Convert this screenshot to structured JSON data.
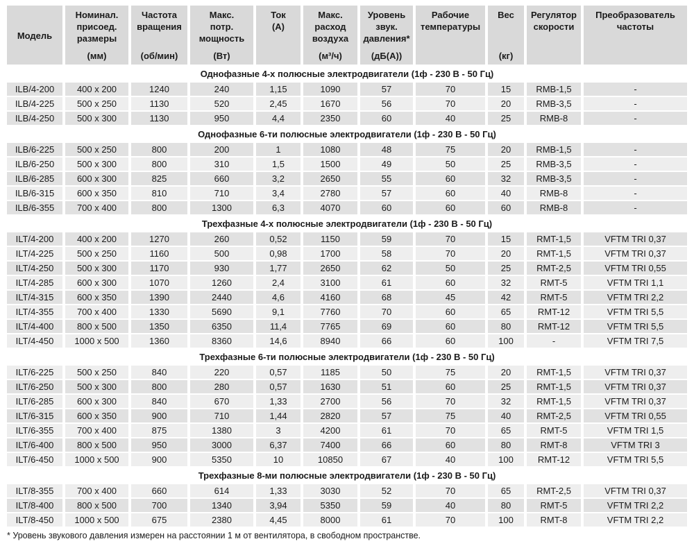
{
  "colors": {
    "header_bg": "#d9d9d9",
    "row_dark": "#e1e1e1",
    "row_light": "#eeeeee",
    "text": "#1a1a1a",
    "background": "#ffffff"
  },
  "table": {
    "columns": [
      {
        "lines": [
          "Модель"
        ],
        "unit": ""
      },
      {
        "lines": [
          "Номинал.",
          "присоед.",
          "размеры"
        ],
        "unit": "(мм)"
      },
      {
        "lines": [
          "Частота",
          "вращения"
        ],
        "unit": "(об/мин)"
      },
      {
        "lines": [
          "Макс.",
          "потр.",
          "мощность"
        ],
        "unit": "(Вт)"
      },
      {
        "lines": [
          "Ток"
        ],
        "unit": "(А)"
      },
      {
        "lines": [
          "Макс.",
          "расход",
          "воздуха"
        ],
        "unit": "(м³/ч)"
      },
      {
        "lines": [
          "Уровень",
          "звук.",
          "давления*"
        ],
        "unit": "(дБ(А))"
      },
      {
        "lines": [
          "Рабочие",
          "температуры"
        ],
        "unit": ""
      },
      {
        "lines": [
          "Вес"
        ],
        "unit": "(кг)"
      },
      {
        "lines": [
          "Регулятор",
          "скорости"
        ],
        "unit": ""
      },
      {
        "lines": [
          "Преобразователь",
          "частоты"
        ],
        "unit": ""
      }
    ],
    "sections": [
      {
        "title": "Однофазные 4-х полюсные электродвигатели (1ф - 230 В - 50 Гц)",
        "rows": [
          [
            "ILB/4-200",
            "400 x 200",
            "1240",
            "240",
            "1,15",
            "1090",
            "57",
            "70",
            "15",
            "RMB-1,5",
            "-"
          ],
          [
            "ILB/4-225",
            "500 x 250",
            "1130",
            "520",
            "2,45",
            "1670",
            "56",
            "70",
            "20",
            "RMB-3,5",
            "-"
          ],
          [
            "ILB/4-250",
            "500 x 300",
            "1130",
            "950",
            "4,4",
            "2350",
            "60",
            "40",
            "25",
            "RMB-8",
            "-"
          ]
        ]
      },
      {
        "title": "Однофазные 6-ти полюсные электродвигатели (1ф - 230 В - 50 Гц)",
        "rows": [
          [
            "ILB/6-225",
            "500 x 250",
            "800",
            "200",
            "1",
            "1080",
            "48",
            "75",
            "20",
            "RMB-1,5",
            "-"
          ],
          [
            "ILB/6-250",
            "500 x 300",
            "800",
            "310",
            "1,5",
            "1500",
            "49",
            "50",
            "25",
            "RMB-3,5",
            "-"
          ],
          [
            "ILB/6-285",
            "600 x 300",
            "825",
            "660",
            "3,2",
            "2650",
            "55",
            "60",
            "32",
            "RMB-3,5",
            "-"
          ],
          [
            "ILB/6-315",
            "600 x 350",
            "810",
            "710",
            "3,4",
            "2780",
            "57",
            "60",
            "40",
            "RMB-8",
            "-"
          ],
          [
            "ILB/6-355",
            "700 x 400",
            "800",
            "1300",
            "6,3",
            "4070",
            "60",
            "60",
            "60",
            "RMB-8",
            "-"
          ]
        ]
      },
      {
        "title": "Трехфазные 4-х полюсные электродвигатели (1ф - 230 В - 50 Гц)",
        "rows": [
          [
            "ILT/4-200",
            "400 x 200",
            "1270",
            "260",
            "0,52",
            "1150",
            "59",
            "70",
            "15",
            "RMT-1,5",
            "VFTM TRI 0,37"
          ],
          [
            "ILT/4-225",
            "500 x 250",
            "1160",
            "500",
            "0,98",
            "1700",
            "58",
            "70",
            "20",
            "RMT-1,5",
            "VFTM TRI 0,37"
          ],
          [
            "ILT/4-250",
            "500 x 300",
            "1170",
            "930",
            "1,77",
            "2650",
            "62",
            "50",
            "25",
            "RMT-2,5",
            "VFTM TRI 0,55"
          ],
          [
            "ILT/4-285",
            "600 x 300",
            "1070",
            "1260",
            "2,4",
            "3100",
            "61",
            "60",
            "32",
            "RMT-5",
            "VFTM TRI 1,1"
          ],
          [
            "ILT/4-315",
            "600 x 350",
            "1390",
            "2440",
            "4,6",
            "4160",
            "68",
            "45",
            "42",
            "RMT-5",
            "VFTM TRI 2,2"
          ],
          [
            "ILT/4-355",
            "700 x 400",
            "1330",
            "5690",
            "9,1",
            "7760",
            "70",
            "60",
            "65",
            "RMT-12",
            "VFTM TRI 5,5"
          ],
          [
            "ILT/4-400",
            "800 x 500",
            "1350",
            "6350",
            "11,4",
            "7765",
            "69",
            "60",
            "80",
            "RMT-12",
            "VFTM TRI 5,5"
          ],
          [
            "ILT/4-450",
            "1000 x 500",
            "1360",
            "8360",
            "14,6",
            "8940",
            "66",
            "60",
            "100",
            "-",
            "VFTM TRI 7,5"
          ]
        ]
      },
      {
        "title": "Трехфазные 6-ти полюсные электродвигатели (1ф - 230 В - 50 Гц)",
        "rows": [
          [
            "ILT/6-225",
            "500 x 250",
            "840",
            "220",
            "0,57",
            "1185",
            "50",
            "75",
            "20",
            "RMT-1,5",
            "VFTM TRI 0,37"
          ],
          [
            "ILT/6-250",
            "500 x 300",
            "800",
            "280",
            "0,57",
            "1630",
            "51",
            "60",
            "25",
            "RMT-1,5",
            "VFTM TRI 0,37"
          ],
          [
            "ILT/6-285",
            "600 x 300",
            "840",
            "670",
            "1,33",
            "2700",
            "56",
            "70",
            "32",
            "RMT-1,5",
            "VFTM TRI 0,37"
          ],
          [
            "ILT/6-315",
            "600 x 350",
            "900",
            "710",
            "1,44",
            "2820",
            "57",
            "75",
            "40",
            "RMT-2,5",
            "VFTM TRI 0,55"
          ],
          [
            "ILT/6-355",
            "700 x 400",
            "875",
            "1380",
            "3",
            "4200",
            "61",
            "70",
            "65",
            "RMT-5",
            "VFTM TRI 1,5"
          ],
          [
            "ILT/6-400",
            "800 x 500",
            "950",
            "3000",
            "6,37",
            "7400",
            "66",
            "60",
            "80",
            "RMT-8",
            "VFTM TRI 3"
          ],
          [
            "ILT/6-450",
            "1000 x 500",
            "900",
            "5350",
            "10",
            "10850",
            "67",
            "40",
            "100",
            "RMT-12",
            "VFTM TRI 5,5"
          ]
        ]
      },
      {
        "title": "Трехфазные 8-ми полюсные электродвигатели (1ф - 230 В - 50 Гц)",
        "rows": [
          [
            "ILT/8-355",
            "700 x 400",
            "660",
            "614",
            "1,33",
            "3030",
            "52",
            "70",
            "65",
            "RMT-2,5",
            "VFTM TRI 0,37"
          ],
          [
            "ILT/8-400",
            "800 x 500",
            "700",
            "1340",
            "3,94",
            "5350",
            "59",
            "40",
            "80",
            "RMT-5",
            "VFTM TRI 2,2"
          ],
          [
            "ILT/8-450",
            "1000 x 500",
            "675",
            "2380",
            "4,45",
            "8000",
            "61",
            "70",
            "100",
            "RMT-8",
            "VFTM TRI 2,2"
          ]
        ]
      }
    ],
    "footnote": "* Уровень звукового давления измерен на расстоянии 1 м от вентилятора, в свободном пространстве."
  }
}
